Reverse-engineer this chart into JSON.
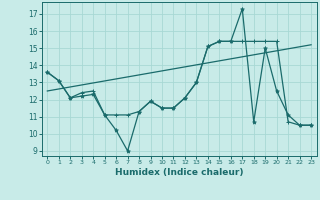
{
  "xlabel": "Humidex (Indice chaleur)",
  "background_color": "#c8ebe8",
  "grid_color": "#a8d8d4",
  "line_color": "#1a6b6b",
  "xlim": [
    -0.5,
    23.5
  ],
  "ylim": [
    8.7,
    17.7
  ],
  "yticks": [
    9,
    10,
    11,
    12,
    13,
    14,
    15,
    16,
    17
  ],
  "xticks": [
    0,
    1,
    2,
    3,
    4,
    5,
    6,
    7,
    8,
    9,
    10,
    11,
    12,
    13,
    14,
    15,
    16,
    17,
    18,
    19,
    20,
    21,
    22,
    23
  ],
  "series1_x": [
    0,
    1,
    2,
    3,
    4,
    5,
    6,
    7,
    8,
    9,
    10,
    11,
    12,
    13,
    14,
    15,
    16,
    17,
    18,
    19,
    20,
    21,
    22,
    23
  ],
  "series1_y": [
    13.6,
    13.1,
    12.1,
    12.2,
    12.3,
    11.1,
    10.2,
    9.0,
    11.3,
    11.9,
    11.5,
    11.5,
    12.1,
    13.0,
    15.1,
    15.4,
    15.4,
    17.3,
    10.7,
    15.0,
    12.5,
    11.1,
    10.5,
    10.5
  ],
  "series2_x": [
    0,
    1,
    2,
    3,
    4,
    5,
    6,
    7,
    8,
    9,
    10,
    11,
    12,
    13,
    14,
    15,
    16,
    17,
    18,
    19,
    20,
    21,
    22,
    23
  ],
  "series2_y": [
    13.6,
    13.1,
    12.1,
    12.4,
    12.5,
    11.1,
    11.1,
    11.1,
    11.3,
    11.9,
    11.5,
    11.5,
    12.1,
    13.0,
    15.1,
    15.4,
    15.4,
    15.4,
    15.4,
    15.4,
    15.4,
    10.7,
    10.5,
    10.5
  ],
  "series3_x": [
    0,
    23
  ],
  "series3_y": [
    12.5,
    15.2
  ]
}
